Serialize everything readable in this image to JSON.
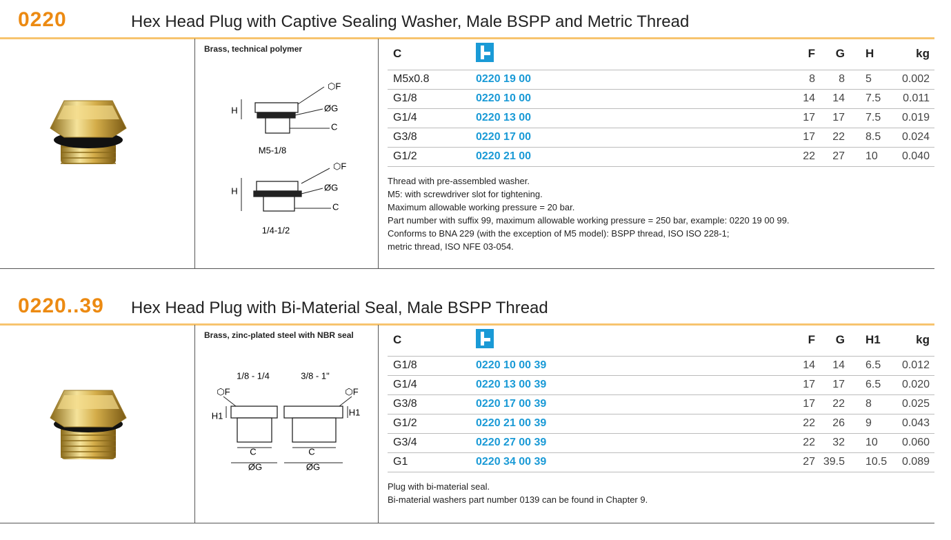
{
  "sections": [
    {
      "code": "0220",
      "title": "Hex Head Plug with Captive Sealing Washer, Male BSPP and Metric Thread",
      "material": "Brass, technical polymer",
      "diagram_labels": [
        "⬡F",
        "ØG",
        "C",
        "H",
        "M5-1/8",
        "⬡F",
        "ØG",
        "C",
        "H",
        "1/4-1/2"
      ],
      "columns": [
        "C",
        "F",
        "G",
        "H",
        "kg"
      ],
      "rows": [
        [
          "M5x0.8",
          "0220 19 00",
          "8",
          "8",
          "5",
          "0.002"
        ],
        [
          "G1/8",
          "0220 10 00",
          "14",
          "14",
          "7.5",
          "0.011"
        ],
        [
          "G1/4",
          "0220 13 00",
          "17",
          "17",
          "7.5",
          "0.019"
        ],
        [
          "G3/8",
          "0220 17 00",
          "17",
          "22",
          "8.5",
          "0.024"
        ],
        [
          "G1/2",
          "0220 21 00",
          "22",
          "27",
          "10",
          "0.040"
        ]
      ],
      "notes": [
        "Thread with pre-assembled washer.",
        "M5:  with screwdriver slot for tightening.",
        "Maximum allowable working pressure = 20 bar.",
        "Part number with suffix 99, maximum allowable working pressure = 250 bar, example: 0220 19 00 99.",
        "Conforms to BNA 229 (with the exception of M5 model): BSPP thread, ISO ISO 228-1;",
        "metric thread, ISO NFE 03-054."
      ]
    },
    {
      "code": "0220..39",
      "title": "Hex Head Plug with Bi-Material Seal, Male BSPP Thread",
      "material": "Brass, zinc-plated steel  with NBR seal",
      "diagram_labels": [
        "1/8  -  1/4",
        "3/8  -  1\"",
        "⬡F",
        "⬡F",
        "H1",
        "H1",
        "C",
        "C",
        "ØG",
        "ØG"
      ],
      "columns": [
        "C",
        "F",
        "G",
        "H1",
        "kg"
      ],
      "rows": [
        [
          "G1/8",
          "0220 10 00 39",
          "14",
          "14",
          "6.5",
          "0.012"
        ],
        [
          "G1/4",
          "0220 13 00 39",
          "17",
          "17",
          "6.5",
          "0.020"
        ],
        [
          "G3/8",
          "0220 17 00 39",
          "17",
          "22",
          "8",
          "0.025"
        ],
        [
          "G1/2",
          "0220 21 00 39",
          "22",
          "26",
          "9",
          "0.043"
        ],
        [
          "G3/4",
          "0220 27 00 39",
          "22",
          "32",
          "10",
          "0.060"
        ],
        [
          "G1",
          "0220 34 00 39",
          "27",
          "39.5",
          "10.5",
          "0.089"
        ]
      ],
      "notes": [
        "Plug with bi-material seal.",
        "Bi-material washers part number 0139 can be found in Chapter 9."
      ]
    }
  ]
}
